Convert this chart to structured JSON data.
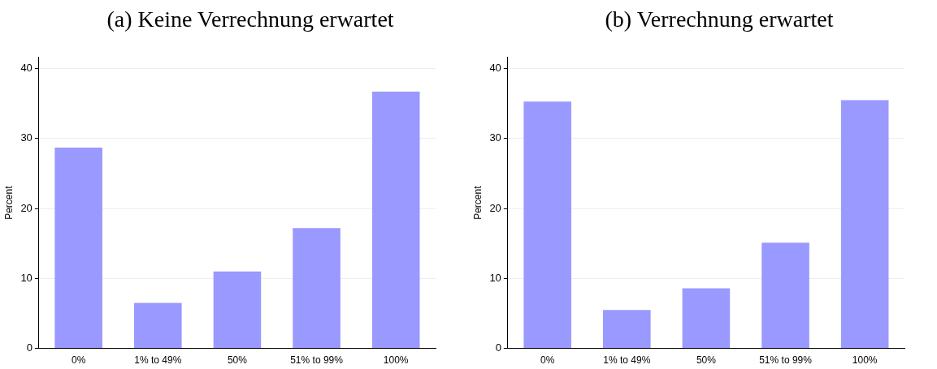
{
  "chart_data": [
    {
      "type": "bar",
      "title": "(a) Keine Verrechnung erwartet",
      "ylabel": "Percent",
      "categories": [
        "0%",
        "1% to 49%",
        "50%",
        "51% to 99%",
        "100%"
      ],
      "values": [
        28.7,
        6.5,
        11.0,
        17.2,
        36.7
      ],
      "color": "#9999ff",
      "ylim": [
        0,
        41.6
      ],
      "yticks": [
        0,
        10,
        20,
        30,
        40
      ],
      "grid": "y"
    },
    {
      "type": "bar",
      "title": "(b) Verrechnung erwartet",
      "ylabel": "Percent",
      "categories": [
        "0%",
        "1% to 49%",
        "50%",
        "51% to 99%",
        "100%"
      ],
      "values": [
        35.3,
        5.5,
        8.6,
        15.1,
        35.5
      ],
      "color": "#9999ff",
      "ylim": [
        0,
        41.6
      ],
      "yticks": [
        0,
        10,
        20,
        30,
        40
      ],
      "grid": "y"
    }
  ]
}
